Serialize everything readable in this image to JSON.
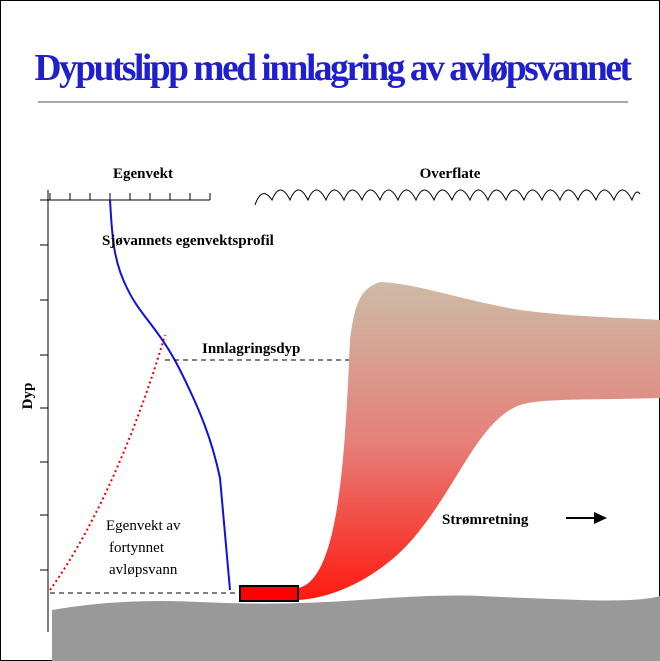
{
  "header": {
    "title": "Dyputslipp med innlagring av avløpsvannet"
  },
  "labels": {
    "density_axis": "Egenvekt",
    "surface": "Overflate",
    "profile": "Sjøvannets egenvektsprofil",
    "trapping_depth": "Innlagringsdyp",
    "depth_axis": "Dyp",
    "diluted_density": [
      "Egenvekt av",
      "fortynnet",
      "avløpsvann"
    ],
    "current": "Strømretning"
  }
}
